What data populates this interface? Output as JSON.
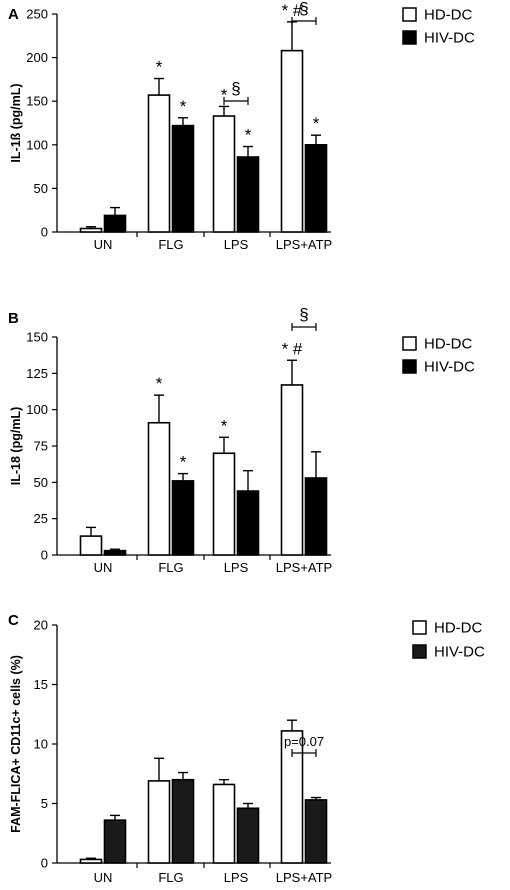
{
  "legend": {
    "hd_label": "HD-DC",
    "hiv_label": "HIV-DC"
  },
  "colors": {
    "hd_fill": "#ffffff",
    "hiv_fill": "#000000",
    "hiv_fill_panel_c": "#1a1a1a",
    "stroke": "#000000"
  },
  "chart_data": [
    {
      "panel": "A",
      "type": "bar",
      "ylabel": "IL-1ß (pg/mL)",
      "ylim": [
        0,
        250
      ],
      "yticks": [
        0,
        50,
        100,
        150,
        200,
        250
      ],
      "categories": [
        "UN",
        "FLG",
        "LPS",
        "LPS+ATP"
      ],
      "series": [
        {
          "name": "HD-DC",
          "values": [
            4,
            157,
            133,
            208
          ],
          "errors": [
            2,
            19,
            11,
            33
          ],
          "marks": [
            "",
            "*",
            "*",
            "* #"
          ]
        },
        {
          "name": "HIV-DC",
          "values": [
            19,
            122,
            86,
            100
          ],
          "errors": [
            9,
            9,
            12,
            11
          ],
          "marks": [
            "",
            "*",
            "*",
            "*"
          ]
        }
      ],
      "brackets": [
        {
          "category": 2,
          "label": "§"
        },
        {
          "category": 3,
          "label": "§"
        }
      ]
    },
    {
      "panel": "B",
      "type": "bar",
      "ylabel": "IL-18 (pg/mL)",
      "ylim": [
        0,
        150
      ],
      "yticks": [
        0,
        25,
        50,
        75,
        100,
        125,
        150
      ],
      "categories": [
        "UN",
        "FLG",
        "LPS",
        "LPS+ATP"
      ],
      "series": [
        {
          "name": "HD-DC",
          "values": [
            13,
            91,
            70,
            117
          ],
          "errors": [
            6,
            19,
            11,
            17
          ],
          "marks": [
            "",
            "*",
            "*",
            "* #"
          ]
        },
        {
          "name": "HIV-DC",
          "values": [
            3,
            51,
            44,
            53
          ],
          "errors": [
            1,
            5,
            14,
            18
          ],
          "marks": [
            "",
            "*",
            "",
            ""
          ]
        }
      ],
      "brackets": [
        {
          "category": 3,
          "label": "§"
        }
      ]
    },
    {
      "panel": "C",
      "type": "bar",
      "ylabel": "FAM-FLICA+ CD11c+ cells (%)",
      "ylim": [
        0,
        20
      ],
      "yticks": [
        0,
        5,
        10,
        15,
        20
      ],
      "categories": [
        "UN",
        "FLG",
        "LPS",
        "LPS+ATP"
      ],
      "series": [
        {
          "name": "HD-DC",
          "values": [
            0.3,
            6.9,
            6.6,
            11.1
          ],
          "errors": [
            0.1,
            1.9,
            0.4,
            0.9
          ],
          "marks": [
            "",
            "",
            "",
            ""
          ]
        },
        {
          "name": "HIV-DC",
          "values": [
            3.6,
            7.0,
            4.6,
            5.3
          ],
          "errors": [
            0.4,
            0.6,
            0.4,
            0.2
          ],
          "marks": [
            "",
            "",
            "",
            ""
          ]
        }
      ],
      "brackets": [
        {
          "category": 3,
          "label": "p=0.07"
        }
      ]
    }
  ]
}
